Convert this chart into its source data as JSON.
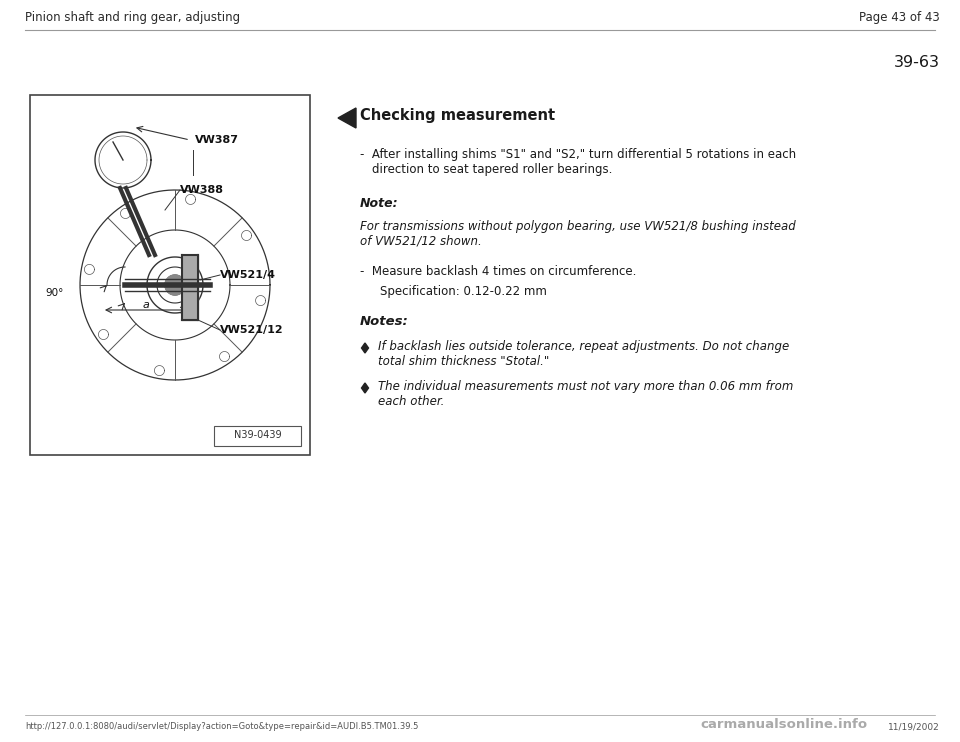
{
  "bg_color": "#ffffff",
  "page_bg": "#ffffff",
  "header_left": "Pinion shaft and ring gear, adjusting",
  "header_right": "Page 43 of 43",
  "section_number": "39-63",
  "footer_left": "http://127.0.0.1:8080/audi/servlet/Display?action=Goto&type=repair&id=AUDI.B5.TM01.39.5",
  "footer_right": "11/19/2002",
  "footer_logo": "carmanualsonline.info",
  "image_label": "N39-0439",
  "checking_title": "Checking measurement",
  "note_label": "Note:",
  "note_text": "For transmissions without polygon bearing, use VW521/8 bushing instead\nof VW521/12 shown.",
  "bullet2": "-  Measure backlash 4 times on circumference.",
  "spec_text": "Specification: 0.12-0.22 mm",
  "notes_label": "Notes:",
  "text_color": "#1a1a1a",
  "header_color": "#2a2a2a",
  "line_color": "#999999",
  "font_size_header": 8.5,
  "font_size_body": 8.5,
  "font_size_title": 10.0,
  "font_size_section": 11.0
}
